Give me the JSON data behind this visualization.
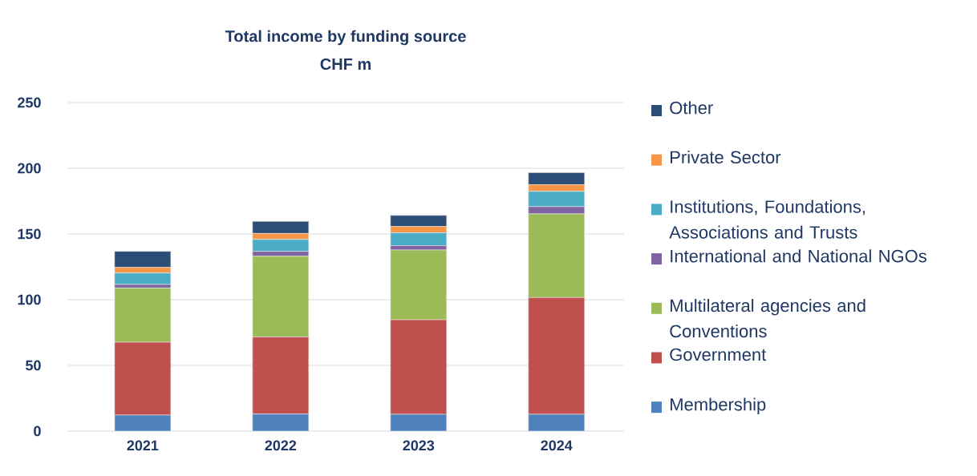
{
  "chart_data": {
    "type": "bar",
    "title": "Total income by funding source",
    "subtitle": "CHF m",
    "categories": [
      "2021",
      "2022",
      "2023",
      "2024"
    ],
    "stacked": true,
    "series": [
      {
        "name": "Membership",
        "color": "#4f81bd",
        "values": [
          12.2,
          13.0,
          12.8,
          12.8
        ]
      },
      {
        "name": "Government",
        "color": "#c0504d",
        "values": [
          55.4,
          58.7,
          71.9,
          88.8
        ]
      },
      {
        "name": "Multilateral agencies and Conventions",
        "color": "#9bbb59",
        "values": [
          41.3,
          61.4,
          53.1,
          63.7
        ]
      },
      {
        "name": "International and National NGOs",
        "color": "#8064a2",
        "values": [
          2.7,
          3.7,
          3.3,
          5.5
        ]
      },
      {
        "name": "Institutions, Foundations, Associations and Trusts",
        "color": "#4bacc6",
        "values": [
          8.7,
          9.0,
          9.8,
          11.6
        ]
      },
      {
        "name": "Private Sector",
        "color": "#f79646",
        "values": [
          4.3,
          4.6,
          4.8,
          5.1
        ]
      },
      {
        "name": "Other",
        "color": "#2c4d75",
        "values": [
          12.2,
          9.2,
          8.4,
          9.2
        ]
      }
    ],
    "ylim": [
      0,
      250
    ],
    "yticks": [
      0,
      50,
      100,
      150,
      200,
      250
    ],
    "grid": "y",
    "legend": "right"
  }
}
